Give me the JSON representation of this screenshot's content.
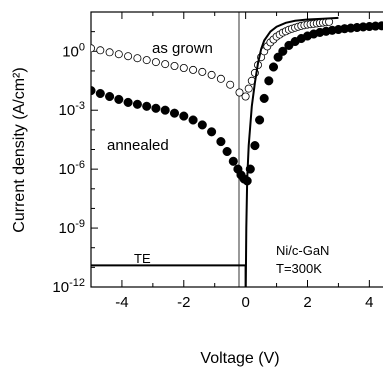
{
  "chart_data": {
    "type": "scatter",
    "title": "",
    "xlabel": "Voltage (V)",
    "ylabel": "Current density (A/cm²)",
    "xlim": [
      -5,
      4.7
    ],
    "ylog_exp_range": [
      -12,
      2
    ],
    "x_ticks": [
      {
        "value": -4,
        "label": "-4"
      },
      {
        "value": -2,
        "label": "-2"
      },
      {
        "value": 0,
        "label": "0"
      },
      {
        "value": 2,
        "label": "2"
      },
      {
        "value": 4,
        "label": "4"
      }
    ],
    "y_ticks": [
      {
        "exp": 0,
        "base": "10",
        "sup": "0"
      },
      {
        "exp": -3,
        "base": "10",
        "sup": "-3"
      },
      {
        "exp": -6,
        "base": "10",
        "sup": "-6"
      },
      {
        "exp": -9,
        "base": "10",
        "sup": "-9"
      },
      {
        "exp": -12,
        "base": "10",
        "sup": "-12"
      }
    ],
    "grid": false,
    "series": [
      {
        "name": "as grown",
        "marker": "open-circle",
        "x": [
          -5.0,
          -4.7,
          -4.4,
          -4.1,
          -3.8,
          -3.5,
          -3.2,
          -2.9,
          -2.6,
          -2.3,
          -2.0,
          -1.7,
          -1.4,
          -1.1,
          -0.8,
          -0.5,
          -0.2,
          0.0,
          0.1,
          0.2,
          0.3,
          0.4,
          0.5,
          0.6,
          0.7,
          0.8,
          0.9,
          1.0,
          1.1,
          1.2,
          1.3,
          1.4,
          1.5,
          1.6,
          1.7,
          1.8,
          1.9,
          2.0,
          2.1,
          2.2,
          2.3,
          2.4,
          2.5,
          2.6,
          2.7
        ],
        "y_exp": [
          0.15,
          0.05,
          -0.05,
          -0.15,
          -0.25,
          -0.35,
          -0.45,
          -0.55,
          -0.65,
          -0.75,
          -0.85,
          -0.95,
          -1.05,
          -1.2,
          -1.4,
          -1.7,
          -2.1,
          -2.3,
          -1.9,
          -1.5,
          -1.1,
          -0.7,
          -0.3,
          0.0,
          0.25,
          0.45,
          0.6,
          0.75,
          0.85,
          0.95,
          1.02,
          1.1,
          1.15,
          1.2,
          1.25,
          1.3,
          1.33,
          1.36,
          1.38,
          1.4,
          1.42,
          1.44,
          1.46,
          1.48,
          1.5
        ]
      },
      {
        "name": "annealed",
        "marker": "filled-circle",
        "x": [
          -5.0,
          -4.7,
          -4.4,
          -4.1,
          -3.8,
          -3.5,
          -3.2,
          -2.9,
          -2.6,
          -2.3,
          -2.0,
          -1.7,
          -1.4,
          -1.1,
          -0.8,
          -0.6,
          -0.4,
          -0.25,
          -0.15,
          -0.05,
          0.05,
          0.15,
          0.3,
          0.45,
          0.6,
          0.75,
          0.9,
          1.05,
          1.2,
          1.4,
          1.6,
          1.8,
          2.0,
          2.2,
          2.4,
          2.6,
          2.8,
          3.0,
          3.2,
          3.4,
          3.6,
          3.8,
          4.0,
          4.2,
          4.4,
          4.6
        ],
        "y_exp": [
          -2.0,
          -2.15,
          -2.3,
          -2.45,
          -2.6,
          -2.7,
          -2.8,
          -2.9,
          -3.0,
          -3.15,
          -3.3,
          -3.5,
          -3.75,
          -4.1,
          -4.6,
          -5.1,
          -5.6,
          -6.0,
          -6.3,
          -6.5,
          -6.6,
          -6.0,
          -4.8,
          -3.5,
          -2.4,
          -1.5,
          -0.8,
          -0.3,
          0.0,
          0.3,
          0.5,
          0.65,
          0.78,
          0.88,
          0.96,
          1.02,
          1.07,
          1.11,
          1.15,
          1.18,
          1.21,
          1.24,
          1.26,
          1.28,
          1.3,
          1.32
        ]
      },
      {
        "name": "TE",
        "marker": "line",
        "x": [
          -5.0,
          -2.0,
          0.0,
          0.0,
          0.02,
          0.05,
          0.1,
          0.2,
          0.3,
          0.4,
          0.5,
          0.6,
          0.8,
          1.0,
          1.3,
          1.6,
          2.0,
          2.5,
          3.0
        ],
        "y_exp": [
          -10.9,
          -10.9,
          -10.9,
          -12.9,
          -9.0,
          -6.5,
          -4.8,
          -2.8,
          -1.6,
          -0.6,
          0.1,
          0.55,
          1.0,
          1.25,
          1.45,
          1.55,
          1.62,
          1.66,
          1.7
        ]
      }
    ],
    "annotations": [
      "as grown",
      "annealed",
      "TE",
      "Ni/c-GaN",
      "T=300K"
    ]
  }
}
